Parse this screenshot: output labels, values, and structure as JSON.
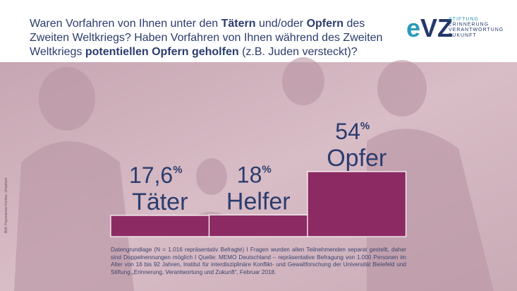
{
  "chart_data": {
    "type": "bar",
    "title_lines": [
      [
        {
          "text": "Waren Vorfahren von Ihnen unter den ",
          "bold": false
        },
        {
          "text": "Tätern",
          "bold": true
        },
        {
          "text": " und/oder ",
          "bold": false
        },
        {
          "text": "Opfern",
          "bold": true
        },
        {
          "text": " des",
          "bold": false
        }
      ],
      [
        {
          "text": "Zweiten Weltkriegs? Haben Vorfahren von Ihnen während des Zweiten",
          "bold": false
        }
      ],
      [
        {
          "text": "Weltkriegs ",
          "bold": false
        },
        {
          "text": "potentiellen Opfern geholfen",
          "bold": true
        },
        {
          "text": " (z.B. Juden versteckt)?",
          "bold": false
        }
      ]
    ],
    "categories": [
      "Täter",
      "Helfer",
      "Opfer"
    ],
    "values": [
      17.6,
      18,
      54
    ],
    "value_labels": [
      "17,6",
      "18",
      "54"
    ],
    "unit_label": "%",
    "color": "#8c2b63",
    "footnote": "Datengrundlage (N = 1.016 repräsentativ Befragte) I Fragen wurden allen Teilnehmenden separat gestellt, daher sind Doppelnennungen möglich I Quelle: MEMO Deutschland – repräsentative Befragung von 1.000 Personen im Alter von 16 bis 92 Jahren, Institut für interdisziplinäre Konflikt- und Gewaltforschung der Universität Bielefeld und Stiftung „Erinnerung, Verantwortung und Zukunft“, Februar 2018.",
    "credit": "Bild: Papanamos Kontos, Unsplash",
    "logo": {
      "mark_first": "e",
      "mark_rest": "VZ",
      "lines": [
        "STIFTUNG",
        "ERINNERUNG",
        "VERANTWORTUNG",
        "ZUKUNFT"
      ]
    }
  }
}
